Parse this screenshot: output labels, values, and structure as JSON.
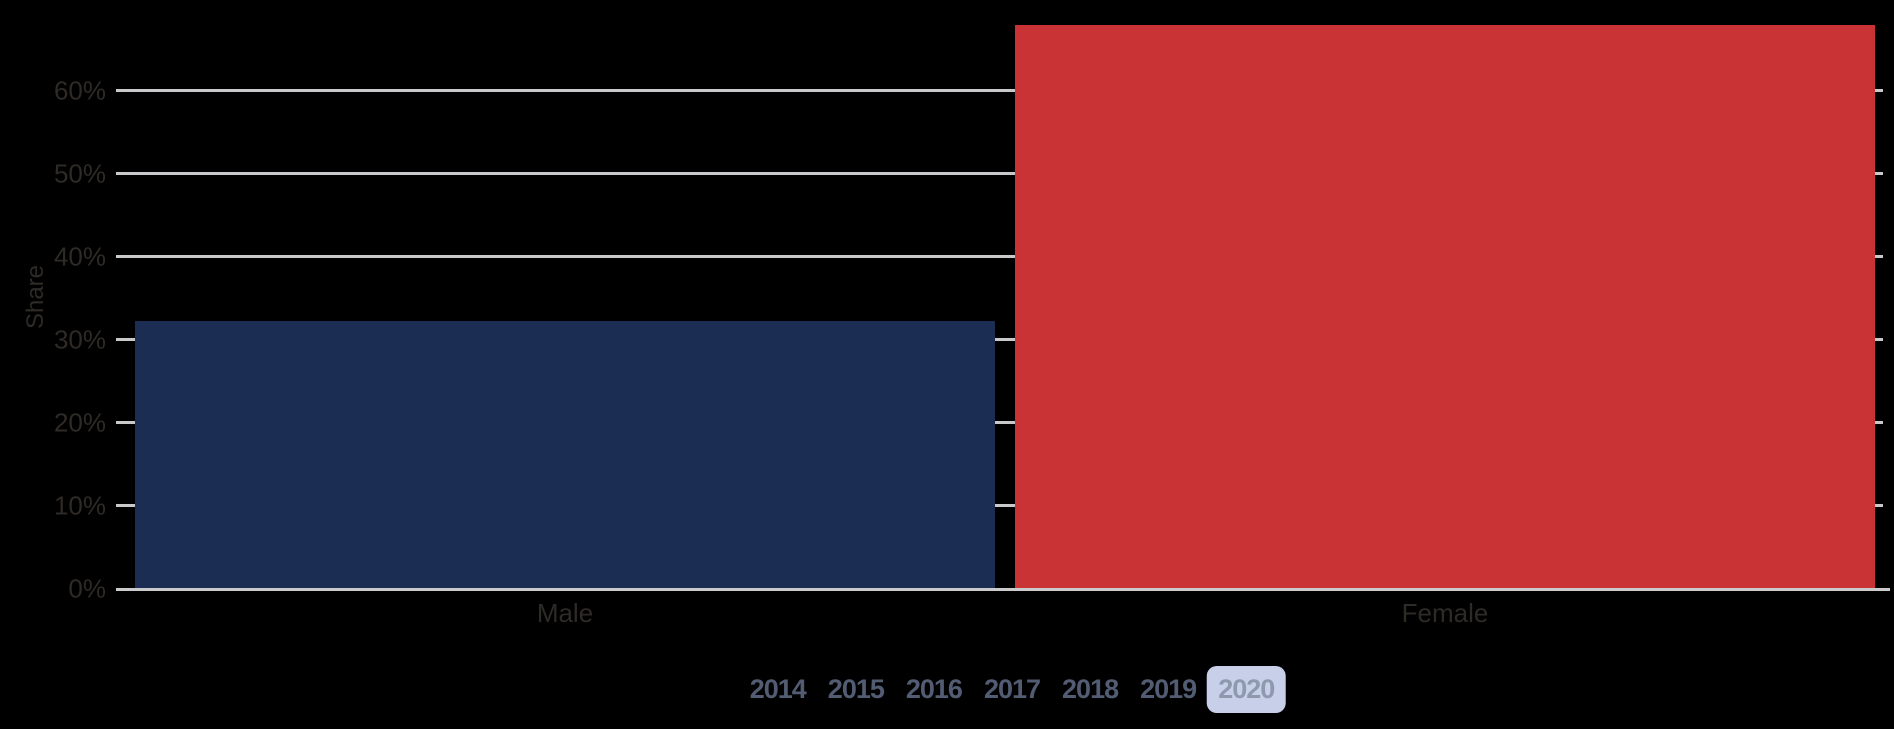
{
  "background_color": "#000000",
  "chart_data": {
    "type": "bar",
    "title": "",
    "categories": [
      "Male",
      "Female"
    ],
    "series": [
      {
        "name": "Share",
        "values": [
          32.2,
          67.8
        ]
      }
    ],
    "xlabel": "",
    "ylabel": "Share",
    "ylim": [
      0,
      67.8
    ],
    "yticks": [
      {
        "value": 0,
        "label": "0%"
      },
      {
        "value": 10,
        "label": "10%"
      },
      {
        "value": 20,
        "label": "20%"
      },
      {
        "value": 30,
        "label": "30%"
      },
      {
        "value": 40,
        "label": "40%"
      },
      {
        "value": 50,
        "label": "50%"
      },
      {
        "value": 60,
        "label": "60%"
      }
    ],
    "grid": true,
    "legend_position": "none",
    "bar_colors": [
      "#1b2d52",
      "#ca3336"
    ]
  },
  "year_selector": {
    "options": [
      {
        "label": "2014",
        "selected": false
      },
      {
        "label": "2015",
        "selected": false
      },
      {
        "label": "2016",
        "selected": false
      },
      {
        "label": "2017",
        "selected": false
      },
      {
        "label": "2018",
        "selected": false
      },
      {
        "label": "2019",
        "selected": false
      },
      {
        "label": "2020",
        "selected": true
      }
    ]
  },
  "colors": {
    "gridline": "#c9c9cc",
    "axis_text": "#2e2a26",
    "year_text": "#525c72",
    "year_selected_text": "#8e99ae",
    "year_selected_bg": "#c8cfe8",
    "male_bar": "#1b2d52",
    "female_bar": "#ca3336"
  }
}
